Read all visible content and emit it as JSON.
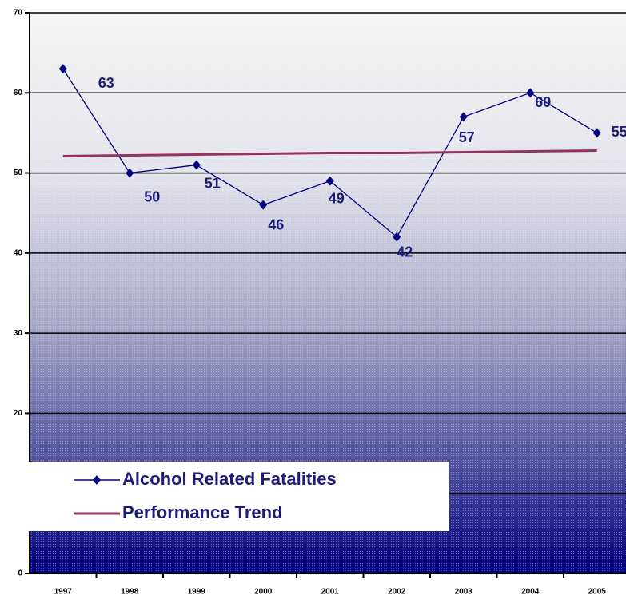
{
  "chart_data": {
    "type": "line",
    "categories": [
      "1997",
      "1998",
      "1999",
      "2000",
      "2001",
      "2002",
      "2003",
      "2004",
      "2005"
    ],
    "series": [
      {
        "name": "Alcohol Related Fatalities",
        "color": "#000080",
        "values": [
          63,
          50,
          51,
          46,
          49,
          42,
          57,
          60,
          55
        ]
      },
      {
        "name": "Performance Trend",
        "color": "#953463",
        "values": [
          52.1,
          52.2,
          52.3,
          52.4,
          52.5,
          52.5,
          52.6,
          52.7,
          52.8
        ]
      }
    ],
    "data_labels_series": 0,
    "ylim": [
      0,
      70
    ],
    "yticks": [
      0,
      10,
      20,
      30,
      40,
      50,
      60,
      70
    ],
    "grid": true
  }
}
